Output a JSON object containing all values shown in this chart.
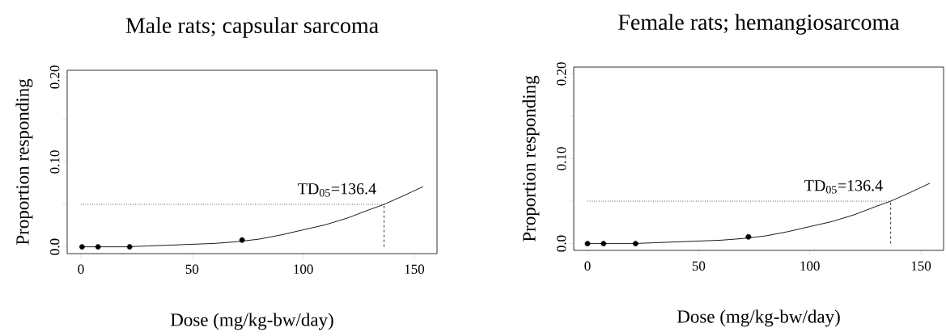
{
  "chart_data": [
    {
      "type": "scatter",
      "title": "Male rats; capsular sarcoma",
      "xlabel": "Dose (mg/kg-bw/day)",
      "ylabel": "Proportion responding",
      "xlim": [
        -6.2,
        160.2
      ],
      "ylim": [
        -0.008,
        0.208
      ],
      "xticks": [
        0,
        50,
        100,
        150
      ],
      "yticks": [
        {
          "value": 0,
          "label": "0.0"
        },
        {
          "value": 0.05,
          "label": null
        },
        {
          "value": 0.1,
          "label": "0.10"
        },
        {
          "value": 0.15,
          "label": null
        },
        {
          "value": 0.2,
          "label": "0.20"
        }
      ],
      "series": [
        {
          "marker": "circle",
          "color": "#000000",
          "x": [
            0.5,
            7.7,
            21.9,
            72.5
          ],
          "values": [
            0,
            0,
            0,
            0.008
          ]
        },
        {
          "type": "line",
          "marker": "none",
          "color": "#000000",
          "x": [
            0,
            10,
            20,
            30,
            40,
            50,
            60,
            70,
            80,
            90,
            100,
            110,
            120,
            130,
            136.4,
            145,
            154
          ],
          "values": [
            0,
            0,
            0,
            0.001,
            0.002,
            0.003,
            0.004,
            0.006,
            0.009,
            0.014,
            0.02,
            0.026,
            0.034,
            0.044,
            0.05,
            0.06,
            0.071
          ]
        }
      ],
      "ref_lines": [
        {
          "axis": "y",
          "value": 0.05,
          "line_style": "dotted"
        },
        {
          "axis": "x",
          "value": 136.4,
          "line_style": "dashed"
        }
      ],
      "annotations": [
        {
          "text": "TD$_{05}$=136.4",
          "x": 136.4,
          "y": 0.05
        }
      ]
    },
    {
      "type": "scatter",
      "title": "Female rats; hemangiosarcoma",
      "xlabel": "Dose (mg/kg-bw/day)",
      "ylabel": "Proportion responding",
      "xlim": [
        -6.2,
        160.2
      ],
      "ylim": [
        -0.008,
        0.208
      ],
      "xticks": [
        0,
        50,
        100,
        150
      ],
      "yticks": [
        {
          "value": 0,
          "label": "0.0"
        },
        {
          "value": 0.05,
          "label": null
        },
        {
          "value": 0.1,
          "label": "0.10"
        },
        {
          "value": 0.15,
          "label": null
        },
        {
          "value": 0.2,
          "label": "0.20"
        }
      ],
      "series": [
        {
          "marker": "circle",
          "color": "#000000",
          "x": [
            0,
            7.2,
            21.6,
            72.4
          ],
          "values": [
            0,
            0,
            0,
            0.008
          ]
        },
        {
          "type": "line",
          "marker": "none",
          "color": "#000000",
          "x": [
            0,
            10,
            20,
            30,
            40,
            50,
            60,
            70,
            80,
            90,
            100,
            110,
            120,
            130,
            136.4,
            145,
            154
          ],
          "values": [
            0,
            0,
            0,
            0.001,
            0.002,
            0.003,
            0.004,
            0.006,
            0.009,
            0.014,
            0.02,
            0.026,
            0.034,
            0.044,
            0.05,
            0.06,
            0.071
          ]
        }
      ],
      "ref_lines": [
        {
          "axis": "y",
          "value": 0.05,
          "line_style": "dotted"
        },
        {
          "axis": "x",
          "value": 136.4,
          "line_style": "dashed"
        }
      ],
      "annotations": [
        {
          "text": "TD$_{05}$=136.4",
          "x": 136.4,
          "y": 0.05
        }
      ]
    }
  ]
}
